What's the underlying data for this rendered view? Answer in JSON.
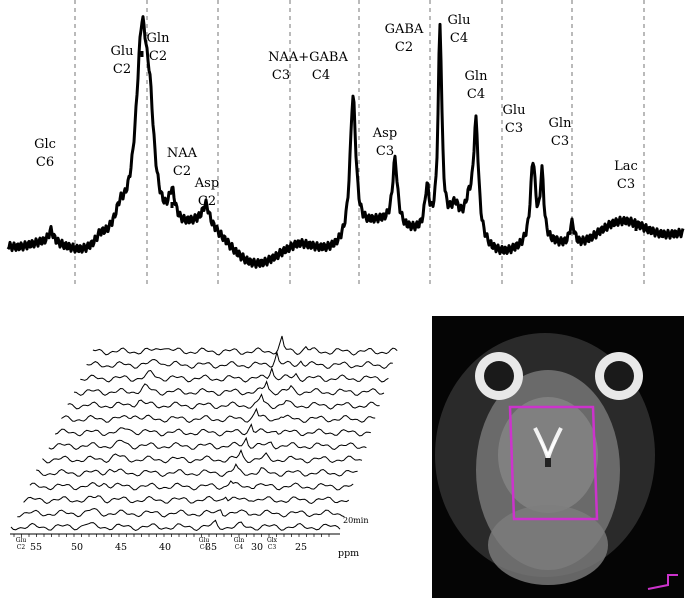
{
  "chart_data": [
    {
      "type": "line",
      "peak_labels": [
        {
          "lines": [
            "Glc",
            "C6"
          ]
        },
        {
          "lines": [
            "Glu",
            "C2"
          ]
        },
        {
          "lines": [
            "Gln",
            "C2"
          ]
        },
        {
          "lines": [
            "NAA",
            "C2"
          ]
        },
        {
          "lines": [
            "Asp",
            "C2"
          ]
        },
        {
          "lines": [
            "NAA+GABA",
            "C3",
            "C4"
          ]
        },
        {
          "lines": [
            "Asp",
            "C3"
          ]
        },
        {
          "lines": [
            "GABA",
            "C2"
          ]
        },
        {
          "lines": [
            "Glu",
            "C4"
          ]
        },
        {
          "lines": [
            "Gln",
            "C4"
          ]
        },
        {
          "lines": [
            "Glu",
            "C3"
          ]
        },
        {
          "lines": [
            "Gln",
            "C3"
          ]
        },
        {
          "lines": [
            "Lac",
            "C3"
          ]
        }
      ],
      "grid": "vertical dashed lines",
      "xaxis": "hidden"
    },
    {
      "type": "line",
      "subtype": "stacked spectra",
      "xlabel": "ppm",
      "x_ticks": [
        "55",
        "50",
        "45",
        "40",
        "35",
        "30",
        "25"
      ],
      "marker_labels": [
        {
          "lines": [
            "Glu",
            "C2"
          ]
        },
        {
          "lines": [
            "Glu",
            "C4"
          ]
        },
        {
          "lines": [
            "Gln",
            "C4"
          ]
        },
        {
          "lines": [
            "Glx",
            "C3"
          ]
        }
      ],
      "time_label": "20min",
      "n_traces": 14
    }
  ],
  "mri_panel": {
    "roi_color": "#cc33cc",
    "background": "#050505"
  }
}
